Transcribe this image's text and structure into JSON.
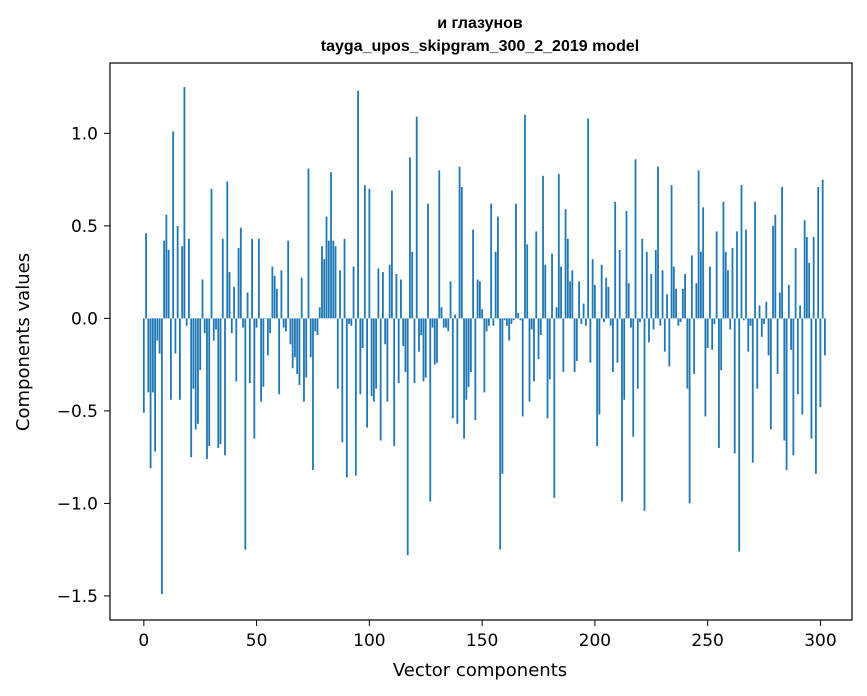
{
  "chart_data": {
    "type": "bar",
    "title_line1": "и глазунов",
    "title_line2": "tayga_upos_skipgram_300_2_2019 model",
    "xlabel": "Vector components",
    "ylabel": "Components values",
    "xlim": [
      -15,
      314
    ],
    "ylim": [
      -1.63,
      1.38
    ],
    "xticks": [
      0,
      50,
      100,
      150,
      200,
      250,
      300
    ],
    "xtick_labels": [
      "0",
      "50",
      "100",
      "150",
      "200",
      "250",
      "300"
    ],
    "yticks": [
      1.0,
      0.5,
      0.0,
      -0.5,
      -1.0,
      -1.5
    ],
    "ytick_labels": [
      "1.0",
      "0.5",
      "0.0",
      "−0.5",
      "−1.0",
      "−1.5"
    ],
    "bar_color": "#1f77b4",
    "values": [
      -0.51,
      0.46,
      -0.4,
      -0.81,
      -0.4,
      -0.72,
      -0.12,
      -0.19,
      -1.49,
      0.42,
      0.56,
      0.37,
      -0.44,
      1.01,
      -0.19,
      0.5,
      -0.44,
      0.39,
      1.25,
      -0.04,
      0.43,
      -0.75,
      -0.38,
      -0.6,
      -0.57,
      -0.28,
      0.21,
      -0.08,
      -0.76,
      -0.69,
      0.7,
      -0.12,
      -0.06,
      -0.7,
      -0.68,
      0.43,
      -0.74,
      0.74,
      0.25,
      -0.08,
      0.17,
      -0.34,
      0.38,
      0.49,
      -0.05,
      -1.25,
      0.14,
      -0.35,
      0.43,
      -0.65,
      -0.05,
      0.43,
      -0.45,
      -0.37,
      0.0,
      -0.2,
      -0.08,
      0.28,
      0.23,
      0.16,
      -0.41,
      0.26,
      -0.05,
      -0.07,
      0.42,
      -0.14,
      -0.27,
      -0.21,
      -0.3,
      -0.36,
      0.22,
      -0.45,
      -0.32,
      0.81,
      -0.21,
      -0.82,
      -0.07,
      -0.09,
      0.06,
      0.39,
      0.32,
      0.55,
      0.42,
      0.79,
      0.42,
      0.39,
      -0.38,
      0.26,
      -0.67,
      0.43,
      -0.86,
      -0.03,
      -0.04,
      0.28,
      -0.85,
      1.23,
      -0.41,
      -0.16,
      0.72,
      -0.59,
      0.7,
      -0.42,
      -0.45,
      -0.38,
      0.27,
      -0.66,
      0.25,
      -0.14,
      -0.45,
      0.29,
      0.69,
      -0.69,
      0.24,
      -0.35,
      0.21,
      -0.15,
      -0.29,
      -1.28,
      0.87,
      0.36,
      -0.35,
      1.09,
      -0.18,
      -0.09,
      -0.34,
      -0.32,
      0.62,
      -0.99,
      -0.05,
      -0.25,
      -0.24,
      0.8,
      0.06,
      -0.05,
      -0.05,
      -0.07,
      0.2,
      -0.54,
      0.02,
      -0.57,
      0.82,
      0.71,
      -0.65,
      -0.44,
      -0.37,
      -0.29,
      0.48,
      -0.55,
      0.21,
      0.2,
      0.05,
      -0.4,
      -0.07,
      -0.04,
      0.62,
      -0.04,
      0.36,
      0.55,
      -1.25,
      -0.84,
      -0.01,
      -0.04,
      -0.12,
      -0.03,
      -0.01,
      0.62,
      0.03,
      -0.01,
      -0.53,
      1.1,
      0.4,
      -0.45,
      -0.06,
      -0.34,
      0.47,
      -0.22,
      -0.09,
      0.77,
      0.29,
      -0.54,
      -0.33,
      0.35,
      -0.97,
      0.06,
      0.78,
      0.28,
      -0.29,
      0.59,
      0.43,
      0.2,
      0.26,
      -0.29,
      -0.23,
      0.2,
      -0.03,
      0.08,
      -0.04,
      1.08,
      -0.24,
      0.32,
      0.18,
      -0.69,
      -0.52,
      0.29,
      -0.02,
      0.22,
      0.17,
      -0.04,
      -0.29,
      0.63,
      -0.24,
      0.37,
      -0.99,
      -0.44,
      0.58,
      0.19,
      -0.05,
      -0.64,
      0.86,
      -0.38,
      -0.02,
      0.43,
      -1.04,
      0.36,
      -0.13,
      0.24,
      -0.06,
      0.37,
      0.82,
      -0.04,
      0.26,
      -0.18,
      0.13,
      -0.26,
      0.72,
      0.28,
      0.16,
      -0.04,
      -0.02,
      0.16,
      0.24,
      -0.38,
      -1.0,
      0.34,
      -0.3,
      0.19,
      0.8,
      0.36,
      0.6,
      -0.53,
      -0.16,
      0.28,
      -0.17,
      -0.03,
      0.47,
      -0.7,
      -0.28,
      0.63,
      0.36,
      0.26,
      -0.06,
      0.38,
      -0.73,
      0.47,
      -1.26,
      0.72,
      -0.01,
      0.48,
      -0.18,
      -0.04,
      -0.78,
      0.63,
      -0.38,
      0.07,
      -0.1,
      -0.03,
      0.09,
      -0.2,
      -0.6,
      0.5,
      0.56,
      -0.3,
      0.14,
      0.71,
      -0.66,
      -0.82,
      0.18,
      -0.17,
      -0.74,
      0.38,
      -0.41,
      0.07,
      -0.52,
      0.53,
      0.44,
      0.3,
      -0.65,
      0.44,
      -0.84,
      0.71,
      -0.48,
      0.75,
      -0.2
    ]
  }
}
